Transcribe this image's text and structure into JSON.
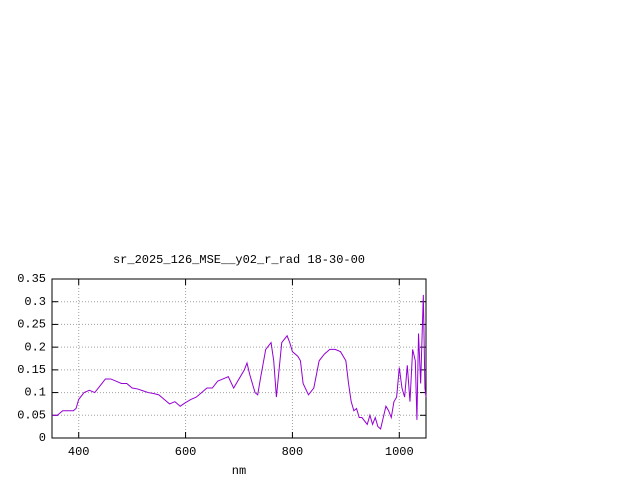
{
  "chart_data": {
    "type": "line",
    "title": "sr_2025_126_MSE__y02_r_rad 18-30-00",
    "x_label": "nm",
    "color": "#9400d3",
    "grid": true,
    "xlim": [
      350,
      1050
    ],
    "xticks": [
      400,
      600,
      800,
      1000
    ],
    "ylim": [
      0,
      0.35
    ],
    "yticks": [
      0,
      0.05,
      0.1,
      0.15,
      0.2,
      0.25,
      0.3,
      0.35
    ],
    "x": [
      350,
      360,
      370,
      380,
      390,
      395,
      400,
      410,
      420,
      430,
      440,
      450,
      460,
      470,
      480,
      490,
      500,
      510,
      520,
      530,
      540,
      550,
      560,
      570,
      580,
      590,
      600,
      610,
      620,
      630,
      640,
      650,
      660,
      670,
      680,
      690,
      700,
      710,
      715,
      720,
      730,
      735,
      740,
      750,
      760,
      765,
      770,
      775,
      780,
      790,
      795,
      800,
      810,
      815,
      820,
      830,
      840,
      850,
      860,
      870,
      880,
      890,
      900,
      905,
      910,
      915,
      920,
      925,
      930,
      940,
      945,
      950,
      955,
      960,
      965,
      970,
      975,
      980,
      985,
      990,
      995,
      1000,
      1005,
      1010,
      1015,
      1020,
      1025,
      1030,
      1033,
      1036,
      1040,
      1045,
      1048,
      1050
    ],
    "values": [
      0.05,
      0.05,
      0.06,
      0.06,
      0.06,
      0.065,
      0.085,
      0.1,
      0.105,
      0.1,
      0.115,
      0.13,
      0.13,
      0.125,
      0.12,
      0.12,
      0.11,
      0.108,
      0.104,
      0.1,
      0.098,
      0.095,
      0.085,
      0.075,
      0.08,
      0.07,
      0.078,
      0.085,
      0.09,
      0.1,
      0.11,
      0.11,
      0.125,
      0.13,
      0.135,
      0.11,
      0.13,
      0.15,
      0.165,
      0.14,
      0.1,
      0.095,
      0.13,
      0.195,
      0.21,
      0.17,
      0.09,
      0.15,
      0.21,
      0.225,
      0.21,
      0.19,
      0.18,
      0.17,
      0.12,
      0.095,
      0.11,
      0.17,
      0.185,
      0.195,
      0.195,
      0.19,
      0.17,
      0.12,
      0.08,
      0.06,
      0.065,
      0.045,
      0.045,
      0.03,
      0.05,
      0.03,
      0.045,
      0.025,
      0.02,
      0.045,
      0.07,
      0.06,
      0.045,
      0.08,
      0.09,
      0.155,
      0.11,
      0.09,
      0.16,
      0.08,
      0.195,
      0.17,
      0.04,
      0.23,
      0.12,
      0.315,
      0.11,
      0.09
    ]
  }
}
